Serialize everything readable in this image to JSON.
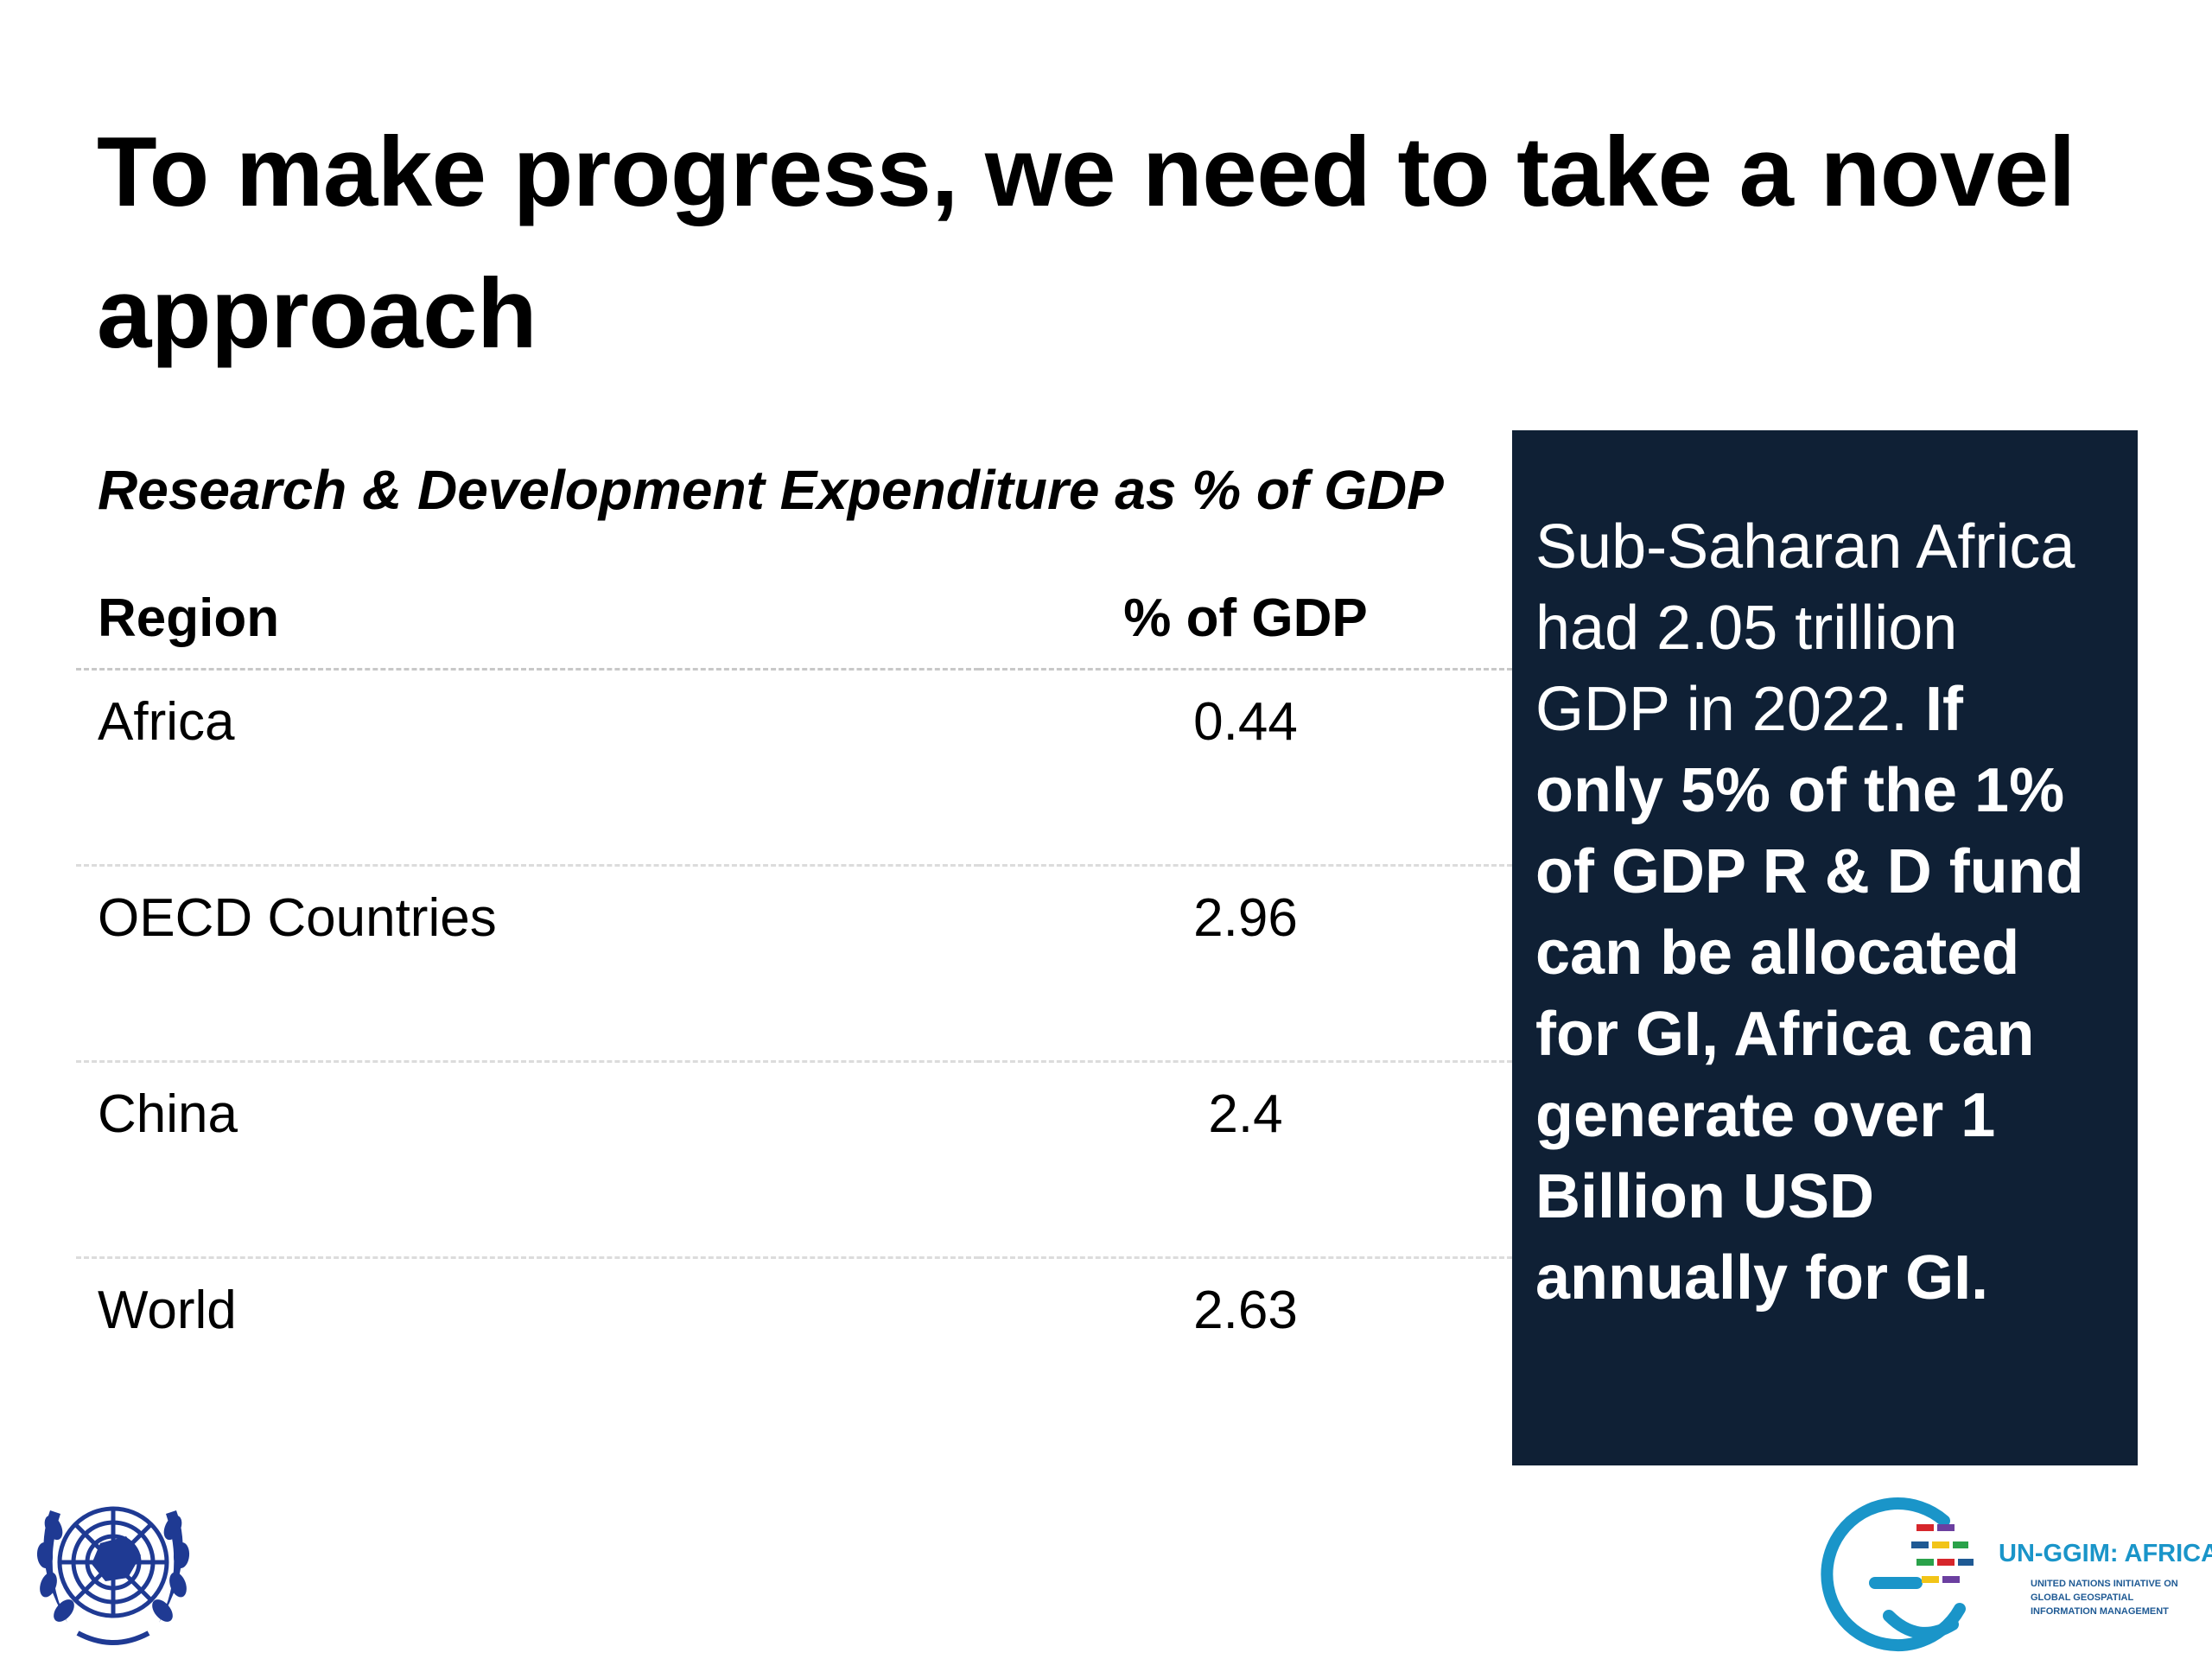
{
  "slide": {
    "title": "To make progress, we need to take a novel approach",
    "table_caption": "Research & Development Expenditure as % of GDP"
  },
  "table": {
    "headers": {
      "region": "Region",
      "value": "% of GDP"
    },
    "rows": [
      {
        "region": "Africa",
        "value": "0.44"
      },
      {
        "region": "OECD Countries",
        "value": "2.96"
      },
      {
        "region": "China",
        "value": "2.4"
      },
      {
        "region": "World",
        "value": "2.63"
      }
    ]
  },
  "callout": {
    "lead": "Sub-Saharan Africa had 2.05 trillion GDP in 2022.",
    "emphasis": "If only 5% of the 1% of GDP R & D fund can be allocated for GI, Africa can generate over 1 Billion USD annually for GI.",
    "background_color": "#0f2035"
  },
  "logos": {
    "un_emblem": "un-emblem",
    "ggim_name": "UN-GGIM: AFRICA",
    "ggim_sub_1": "UNITED NATIONS INITIATIVE ON",
    "ggim_sub_2": "GLOBAL GEOSPATIAL",
    "ggim_sub_3": "INFORMATION MANAGEMENT"
  }
}
